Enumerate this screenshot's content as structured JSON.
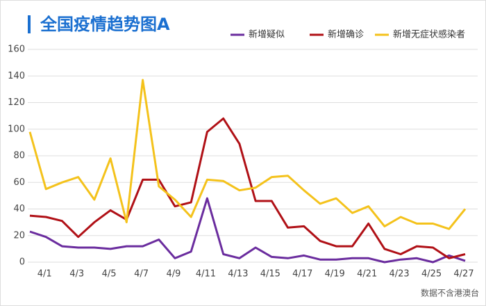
{
  "chart_data": {
    "type": "line",
    "title": "全国疫情趋势图A",
    "note": "数据不含港澳台",
    "categories": [
      null,
      "4/1",
      null,
      "4/3",
      null,
      "4/5",
      null,
      "4/7",
      null,
      "4/9",
      null,
      "4/11",
      null,
      "4/13",
      null,
      "4/15",
      null,
      "4/17",
      null,
      "4/19",
      null,
      "4/21",
      null,
      "4/23",
      null,
      "4/25",
      null,
      "4/27"
    ],
    "series": [
      {
        "name": "新增疑似",
        "color": "#6a2c9e",
        "values": [
          23,
          19,
          12,
          11,
          11,
          10,
          12,
          12,
          17,
          3,
          8,
          48,
          6,
          3,
          11,
          4,
          3,
          5,
          2,
          2,
          3,
          3,
          0,
          2,
          3,
          0,
          5,
          1
        ]
      },
      {
        "name": "新增确诊",
        "color": "#b01016",
        "values": [
          35,
          34,
          31,
          19,
          30,
          39,
          32,
          62,
          62,
          42,
          45,
          98,
          108,
          89,
          46,
          46,
          26,
          27,
          16,
          12,
          12,
          29,
          10,
          6,
          12,
          11,
          3,
          6
        ]
      },
      {
        "name": "新增无症状感染者",
        "color": "#f4c21b",
        "values": [
          98,
          55,
          60,
          64,
          47,
          78,
          30,
          137,
          57,
          47,
          34,
          62,
          61,
          54,
          56,
          64,
          65,
          54,
          44,
          48,
          37,
          42,
          27,
          34,
          29,
          29,
          25,
          40
        ]
      }
    ],
    "ylim": [
      0,
      160
    ],
    "yticks": [
      0,
      20,
      40,
      60,
      80,
      100,
      120,
      140,
      160
    ],
    "grid": true
  }
}
